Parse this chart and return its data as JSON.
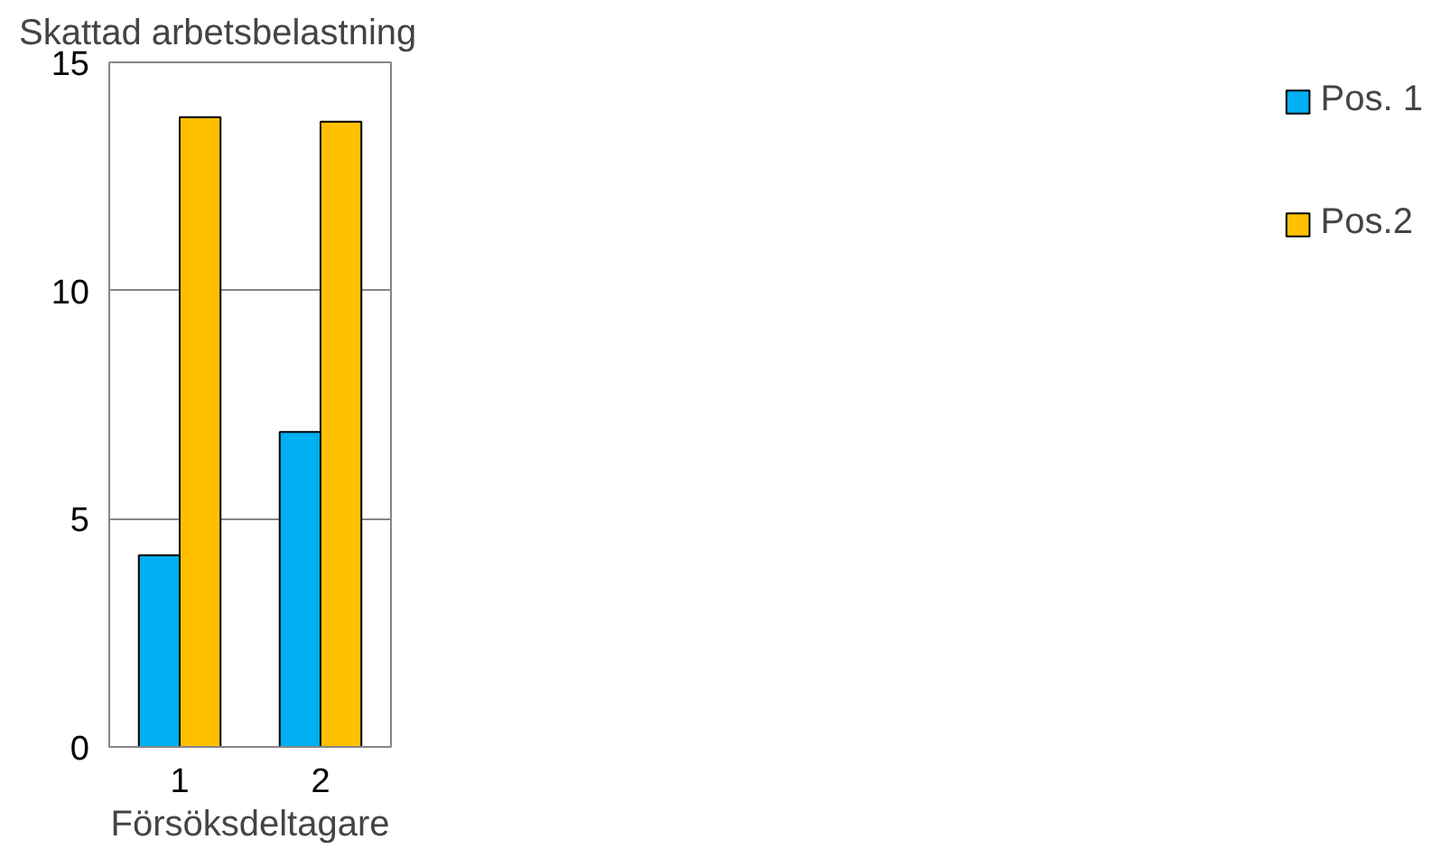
{
  "chart_data": {
    "type": "bar",
    "ylabel": "Skattad arbetsbelastning",
    "xlabel": "Försöksdeltagare",
    "categories": [
      "1",
      "2"
    ],
    "series": [
      {
        "name": "Pos. 1",
        "color": "#00b0f0",
        "values": [
          4.2,
          6.9
        ]
      },
      {
        "name": "Pos.2",
        "color": "#ffc000",
        "values": [
          13.8,
          13.7
        ]
      }
    ],
    "ylim": [
      0,
      15
    ],
    "yticks": [
      0,
      5,
      10,
      15
    ],
    "grid": "y",
    "legend": "right"
  }
}
